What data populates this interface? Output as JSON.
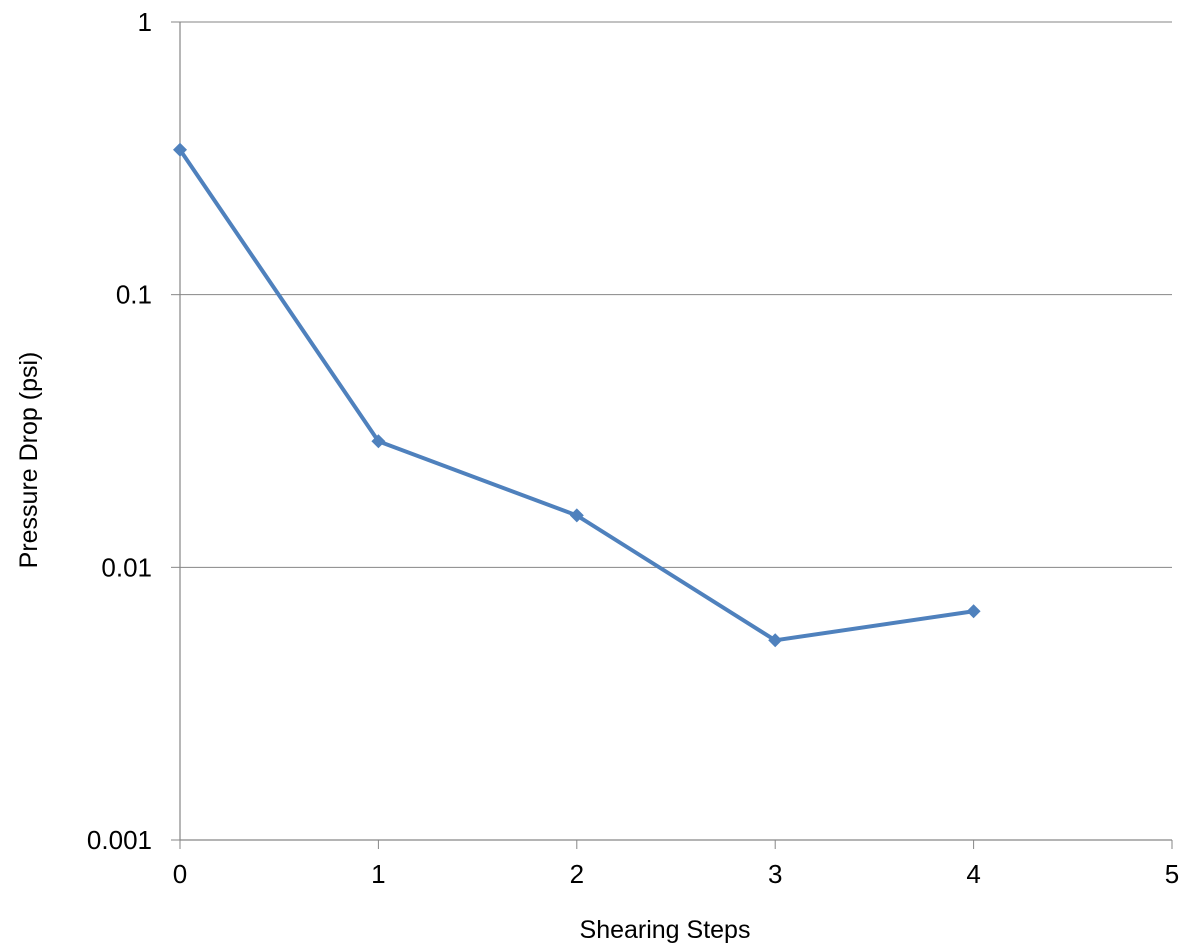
{
  "chart_data": {
    "type": "line",
    "title": "",
    "xlabel": "Shearing Steps",
    "ylabel": "Pressure Drop (psi)",
    "x": [
      0,
      1,
      2,
      3,
      4
    ],
    "series": [
      {
        "values": [
          0.34,
          0.029,
          0.0155,
          0.0054,
          0.0069
        ]
      }
    ],
    "xlim": [
      0,
      5
    ],
    "ylim": [
      0.001,
      1
    ],
    "yscale": "log",
    "x_ticks": [
      "0",
      "1",
      "2",
      "3",
      "4",
      "5"
    ],
    "y_ticks": [
      "1",
      "0.1",
      "0.01",
      "0.001"
    ],
    "grid": "horizontal",
    "legend": "none",
    "colors": {
      "line": "#4f81bd",
      "grid": "#868686",
      "axis": "#868686"
    }
  }
}
